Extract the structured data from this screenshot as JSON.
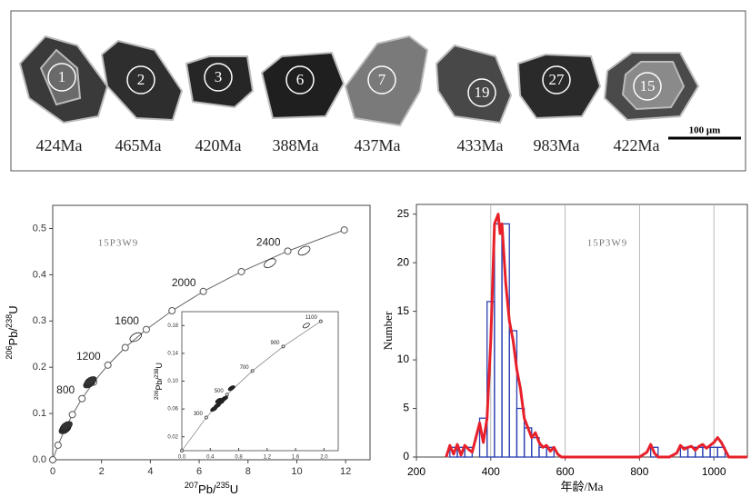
{
  "cl_panel": {
    "grains": [
      {
        "number": "1",
        "age": "424Ma"
      },
      {
        "number": "2",
        "age": "465Ma"
      },
      {
        "number": "3",
        "age": "420Ma"
      },
      {
        "number": "6",
        "age": "388Ma"
      },
      {
        "number": "7",
        "age": "437Ma"
      },
      {
        "number": "19",
        "age": "433Ma"
      },
      {
        "number": "27",
        "age": "983Ma"
      },
      {
        "number": "15",
        "age": "422Ma"
      }
    ],
    "scale_bar": "100 μm"
  },
  "chart_data": [
    {
      "type": "concordia",
      "sample": "15P3W9",
      "xlabel": [
        "207",
        "Pb/",
        "235",
        "U"
      ],
      "ylabel": [
        "206",
        "Pb/",
        "238",
        "U"
      ],
      "xlim": [
        0,
        13
      ],
      "ylim": [
        0,
        0.55
      ],
      "xticks": [
        0,
        2,
        4,
        6,
        8,
        10,
        12
      ],
      "yticks": [
        {
          "value": 0,
          "label": "0.0"
        },
        0.1,
        0.2,
        0.3,
        0.4,
        0.5
      ],
      "ages": [
        0,
        200,
        400,
        600,
        800,
        1000,
        1200,
        1400,
        1600,
        1800,
        2000,
        2200,
        2400,
        2600
      ],
      "x": [
        0,
        0.2177,
        0.4828,
        0.8056,
        1.1987,
        1.6774,
        2.2603,
        2.9701,
        3.8345,
        4.8868,
        6.168,
        7.7297,
        9.63,
        11.944
      ],
      "values": [
        0,
        0.03151,
        0.06402,
        0.09754,
        0.1321,
        0.1678,
        0.2046,
        0.2426,
        0.2817,
        0.3221,
        0.3638,
        0.4067,
        0.4511,
        0.4968
      ],
      "age_labels": [
        800,
        1200,
        1600,
        2000,
        2400
      ],
      "points": {
        "x": [
          0.5,
          0.53,
          0.56,
          1.5,
          1.55,
          3.4,
          8.9,
          10.3
        ],
        "values": [
          0.066,
          0.07,
          0.073,
          0.165,
          0.17,
          0.265,
          0.425,
          0.452
        ]
      },
      "inset": {
        "xlim": [
          0,
          2.2
        ],
        "ylim": [
          0,
          0.2
        ],
        "xticks": [
          {
            "value": 0,
            "label": "0.0"
          },
          0.4,
          0.8,
          1.2,
          1.6,
          {
            "value": 2,
            "label": "2.0"
          }
        ],
        "yticks": [
          0.02,
          0.06,
          {
            "value": 0.1,
            "label": "0.10"
          },
          0.14,
          0.18
        ],
        "ylabel": [
          "206",
          "Pb/",
          "238",
          "U"
        ],
        "ages": [
          0,
          300,
          500,
          700,
          900,
          1100
        ],
        "x": [
          0,
          0.3437,
          0.6362,
          0.9925,
          1.4263,
          1.9546
        ],
        "values": [
          0,
          0.04764,
          0.08065,
          0.1147,
          0.1498,
          0.1861
        ],
        "age_labels": [
          300,
          500,
          700,
          900,
          1100
        ],
        "points": {
          "x": [
            0.45,
            0.5,
            0.55,
            0.6,
            0.52,
            0.7,
            1.75
          ],
          "values": [
            0.06,
            0.065,
            0.07,
            0.075,
            0.072,
            0.09,
            0.18
          ]
        }
      }
    },
    {
      "type": "histogram",
      "sample": "15P3W9",
      "xlabel": "年龄/Ma",
      "ylabel": "Number",
      "xlim": [
        200,
        1090
      ],
      "ylim": [
        0,
        26
      ],
      "xticks": [
        200,
        400,
        600,
        800,
        1000
      ],
      "yticks": [
        0,
        5,
        10,
        15,
        20,
        25
      ],
      "grid": true,
      "color": "#2b3fb0",
      "bins": [
        290,
        310,
        330,
        350,
        370,
        390,
        410,
        430,
        450,
        470,
        490,
        510,
        530,
        550,
        570,
        590,
        610,
        630,
        650,
        670,
        690,
        710,
        730,
        750,
        770,
        790,
        810,
        830,
        850,
        870,
        890,
        910,
        930,
        950,
        970,
        990,
        1010,
        1030
      ],
      "counts": [
        1,
        1,
        1,
        0,
        4,
        16,
        24,
        24,
        13,
        5,
        3,
        2,
        1,
        1,
        0,
        0,
        0,
        0,
        0,
        0,
        0,
        0,
        0,
        0,
        0,
        0,
        0,
        1,
        0,
        0,
        0,
        1,
        1,
        1,
        1,
        1,
        1
      ],
      "curve": {
        "color": "#e8202a",
        "x": [
          280,
          290,
          300,
          310,
          320,
          330,
          340,
          350,
          360,
          370,
          380,
          390,
          400,
          410,
          420,
          425,
          430,
          440,
          450,
          460,
          470,
          480,
          490,
          500,
          510,
          520,
          530,
          540,
          550,
          560,
          570,
          580,
          590,
          620,
          700,
          800,
          820,
          830,
          840,
          850,
          880,
          900,
          910,
          920,
          930,
          940,
          950,
          960,
          970,
          980,
          990,
          1000,
          1010,
          1020,
          1040,
          1090
        ],
        "values": [
          0,
          1.2,
          0.3,
          1.3,
          0.2,
          1.2,
          0.8,
          0.5,
          2,
          3.5,
          1.5,
          4,
          12,
          24,
          25,
          23,
          24,
          18,
          14,
          12,
          9,
          7,
          4,
          3,
          2,
          2.5,
          1.5,
          1,
          1.2,
          0.6,
          1,
          0.3,
          0,
          0,
          0,
          0,
          0.5,
          1.3,
          0.4,
          0,
          0,
          0.4,
          1.2,
          0.8,
          1,
          1.1,
          0.7,
          1.1,
          1.3,
          0.9,
          1.2,
          1.5,
          2,
          1.5,
          0,
          0
        ]
      }
    }
  ]
}
